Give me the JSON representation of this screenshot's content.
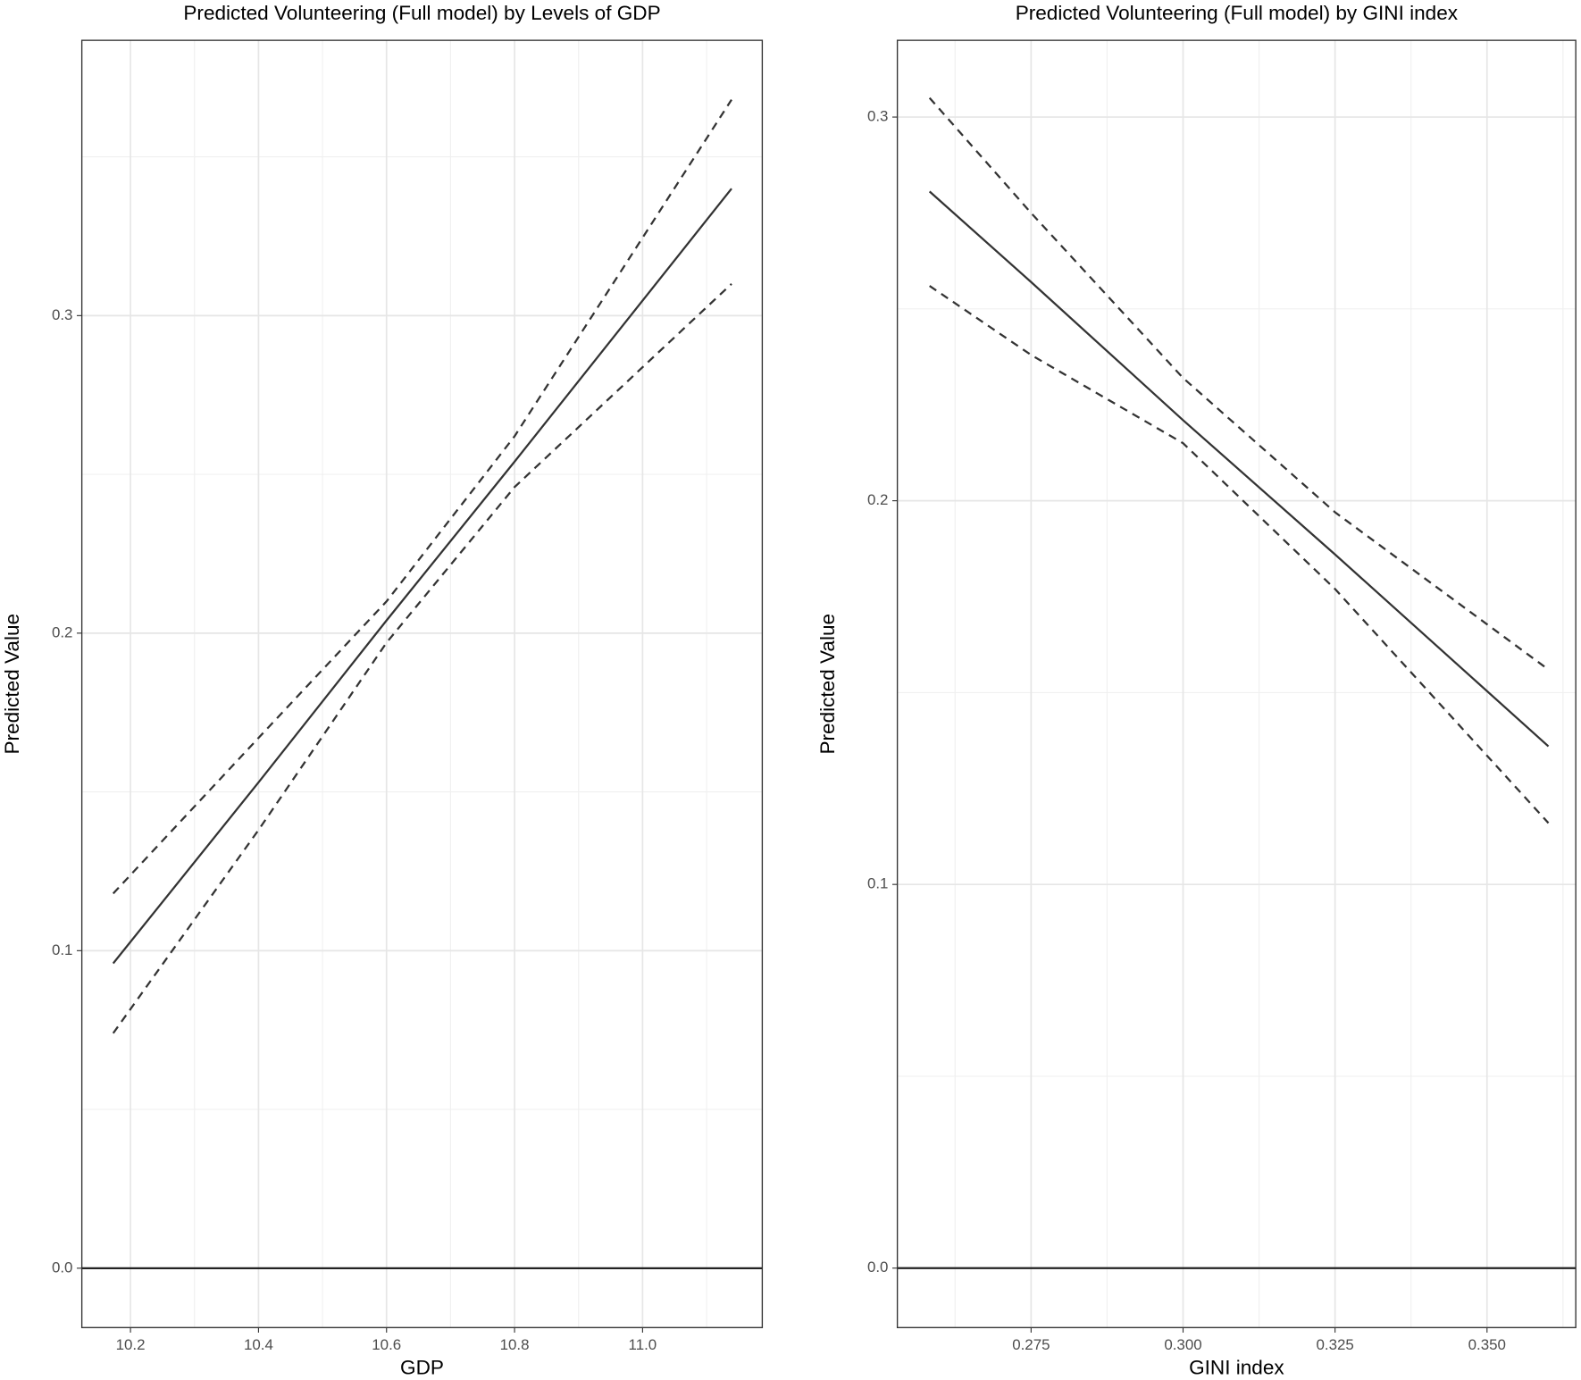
{
  "chart_data": [
    {
      "type": "line",
      "title": "Predicted Volunteering (Full model) by Levels of GDP",
      "xlabel": "GDP",
      "ylabel": "Predicted Value",
      "x": [
        10.173,
        10.4,
        10.6,
        10.8,
        11.139
      ],
      "series": [
        {
          "color": "#333333",
          "dash": false,
          "values": [
            0.096,
            0.153,
            0.204,
            0.254,
            0.34
          ]
        },
        {
          "color": "#333333",
          "dash": true,
          "values": [
            0.118,
            0.167,
            0.21,
            0.262,
            0.368
          ]
        },
        {
          "color": "#333333",
          "dash": true,
          "values": [
            0.074,
            0.138,
            0.197,
            0.246,
            0.31
          ]
        }
      ],
      "xlim": [
        10.124,
        11.187
      ],
      "ylim": [
        -0.0187,
        0.3867
      ],
      "xticks": [
        10.2,
        10.4,
        10.6,
        10.8,
        {
          "value": 11,
          "label": "11.0"
        }
      ],
      "yticks": [
        {
          "value": 0,
          "label": "0.0"
        },
        0.1,
        0.2,
        0.3
      ],
      "xminor": [
        10.3,
        10.5,
        10.7,
        10.9,
        11.1
      ],
      "yminor": [
        0.05,
        0.15,
        0.25,
        0.35
      ],
      "hline": 0,
      "grid": true
    },
    {
      "type": "line",
      "title": "Predicted Volunteering (Full model) by GINI index",
      "xlabel": "GINI index",
      "ylabel": "Predicted Value",
      "x": [
        0.2583,
        0.275,
        0.3,
        0.325,
        0.3601
      ],
      "series": [
        {
          "color": "#333333",
          "dash": false,
          "values": [
            0.2806,
            0.257,
            0.221,
            0.186,
            0.136
          ]
        },
        {
          "color": "#333333",
          "dash": true,
          "values": [
            0.305,
            0.275,
            0.232,
            0.197,
            0.156
          ]
        },
        {
          "color": "#333333",
          "dash": true,
          "values": [
            0.256,
            0.238,
            0.215,
            0.177,
            0.116
          ]
        }
      ],
      "xlim": [
        0.253,
        0.3646
      ],
      "ylim": [
        -0.0155,
        0.32
      ],
      "xticks": [
        0.275,
        {
          "value": 0.3,
          "label": "0.300"
        },
        0.325,
        {
          "value": 0.35,
          "label": "0.350"
        }
      ],
      "yticks": [
        {
          "value": 0,
          "label": "0.0"
        },
        0.1,
        0.2,
        0.3
      ],
      "xminor": [
        0.2625,
        0.2875,
        0.3125,
        0.3375,
        0.3625
      ],
      "yminor": [
        0.05,
        0.15,
        0.25
      ],
      "hline": 0,
      "grid": true
    }
  ]
}
